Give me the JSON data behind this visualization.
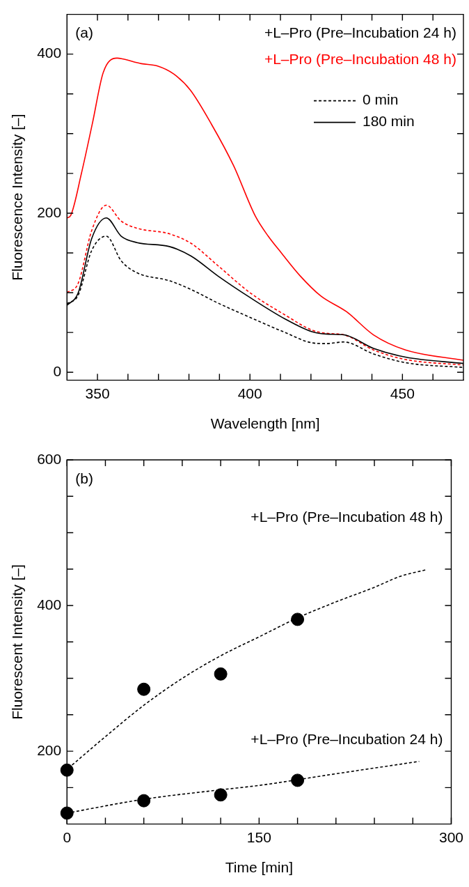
{
  "chart_data": [
    {
      "type": "line",
      "xlabel": "Wavelength [nm]",
      "ylabel": "Fluorescence Intensity [–]",
      "annotations": [
        "(a)",
        "+L–Pro (Pre–Incubation 24 h)",
        "+L–Pro (Pre–Incubation 48 h)",
        "0 min",
        "180 min"
      ],
      "x": [
        340,
        343.7,
        348.1,
        352.9,
        357.8,
        363,
        373.6,
        380.7,
        389.5,
        400,
        411.5,
        420.3,
        425,
        430.8,
        440.5,
        451,
        470
      ],
      "series": [
        {
          "color": "#000000",
          "line_style": "dashed",
          "values": [
            86,
            97,
            153,
            171,
            140,
            125,
            115,
            104,
            87,
            69,
            50,
            37,
            36,
            38,
            23,
            12,
            6
          ]
        },
        {
          "color": "#000000",
          "line_style": "solid",
          "values": [
            84,
            100,
            168,
            194,
            171,
            163,
            158,
            146,
            121,
            94,
            67,
            51,
            48,
            47,
            30,
            19,
            11
          ]
        },
        {
          "color": "#ff0000",
          "line_style": "dashed",
          "values": [
            100,
            112,
            178,
            210,
            190,
            181,
            174,
            162,
            134,
            100,
            72,
            53,
            49,
            47,
            28,
            16,
            9
          ]
        },
        {
          "color": "#ff0000",
          "line_style": "solid",
          "x": [
            340,
            341.2,
            344.8,
            348.4,
            351.9,
            356.4,
            358.2,
            364.4,
            369.7,
            375,
            380.4,
            387.5,
            394.6,
            401.8,
            406,
            410.3,
            416.5,
            423.2,
            431.7,
            440.5,
            451,
            470
          ],
          "values": [
            194,
            197,
            251,
            314,
            377,
            395,
            394,
            388,
            385,
            375,
            355,
            311,
            260,
            196,
            171,
            150,
            121,
            96,
            76,
            47,
            28,
            15
          ]
        }
      ],
      "xlim": [
        340,
        470
      ],
      "xticks": [
        350,
        {
          "value": 360,
          "label": null
        },
        {
          "value": 370,
          "label": null
        },
        {
          "value": 380,
          "label": null
        },
        {
          "value": 390,
          "label": null
        },
        400,
        {
          "value": 410,
          "label": null
        },
        {
          "value": 420,
          "label": null
        },
        {
          "value": 430,
          "label": null
        },
        {
          "value": 440,
          "label": null
        },
        450,
        {
          "value": 460,
          "label": null
        }
      ],
      "ylim": [
        -10,
        450
      ],
      "yticks": [
        0,
        {
          "value": 50,
          "label": null
        },
        {
          "value": 100,
          "label": null
        },
        {
          "value": 150,
          "label": null
        },
        200,
        {
          "value": 250,
          "label": null
        },
        {
          "value": 300,
          "label": null
        },
        {
          "value": 350,
          "label": null
        },
        400
      ],
      "marker": "none"
    },
    {
      "type": "scatter",
      "xlabel": "Time [min]",
      "ylabel": "Fluorescent Intensity [–]",
      "annotations": [
        "(b)",
        "+L–Pro (Pre–Incubation 48 h)",
        "+L–Pro (Pre–Incubation 24 h)"
      ],
      "series": [
        {
          "color": "#000000",
          "x": [
            0,
            60,
            120,
            180
          ],
          "values": [
            174,
            285,
            306,
            381
          ]
        },
        {
          "color": "#000000",
          "x": [
            0,
            60,
            120,
            180
          ],
          "values": [
            115,
            132,
            140,
            160
          ]
        },
        {
          "type": "line",
          "color": "#000000",
          "line_style": "dashed",
          "marker": "none",
          "x": [
            4,
            30,
            60,
            90,
            120,
            150,
            180,
            210,
            240,
            260,
            280
          ],
          "values": [
            181,
            220,
            263,
            300,
            331,
            357,
            383,
            405,
            425,
            440,
            449
          ]
        },
        {
          "type": "line",
          "color": "#000000",
          "line_style": "dashed",
          "marker": "none",
          "x": [
            0,
            60,
            120,
            150,
            210,
            275
          ],
          "values": [
            115,
            134,
            147,
            153,
            169,
            186
          ]
        }
      ],
      "xlim": [
        0,
        300
      ],
      "xticks": [
        0,
        {
          "value": 30,
          "label": null
        },
        {
          "value": 60,
          "label": null
        },
        {
          "value": 90,
          "label": null
        },
        {
          "value": 120,
          "label": null
        },
        150,
        {
          "value": 180,
          "label": null
        },
        {
          "value": 210,
          "label": null
        },
        {
          "value": 240,
          "label": null
        },
        {
          "value": 270,
          "label": null
        },
        300
      ],
      "ylim": [
        100,
        600
      ],
      "yticks": [
        {
          "value": 150,
          "label": null
        },
        200,
        {
          "value": 250,
          "label": null
        },
        {
          "value": 300,
          "label": null
        },
        {
          "value": 350,
          "label": null
        },
        400,
        {
          "value": 450,
          "label": null
        },
        {
          "value": 500,
          "label": null
        },
        {
          "value": 550,
          "label": null
        },
        600
      ],
      "marker": "circle"
    }
  ]
}
